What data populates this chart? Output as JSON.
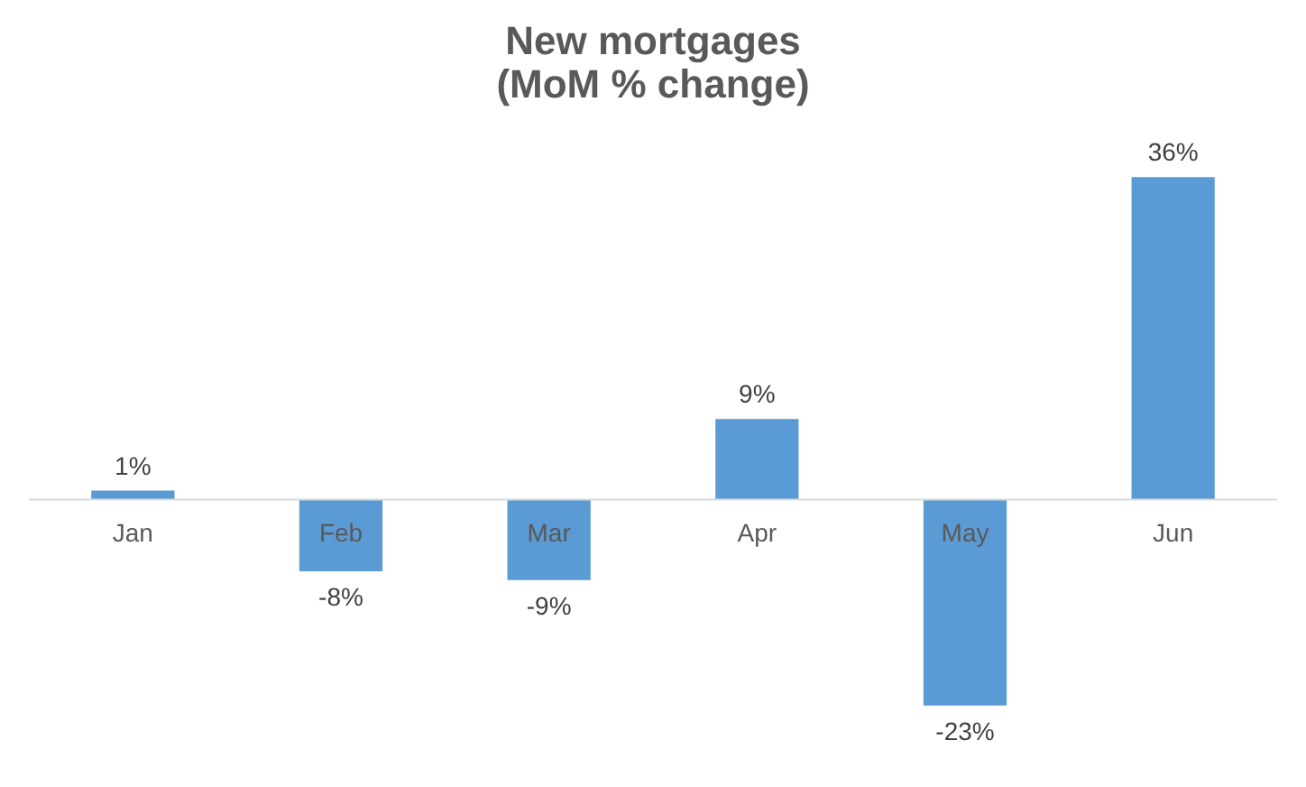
{
  "chart_data": {
    "type": "bar",
    "title": "New mortgages\n(MoM % change)",
    "categories": [
      "Jan",
      "Feb",
      "Mar",
      "Apr",
      "May",
      "Jun"
    ],
    "values": [
      1,
      -8,
      -9,
      9,
      -23,
      36
    ],
    "value_labels": [
      "1%",
      "-8%",
      "-9%",
      "9%",
      "-23%",
      "36%"
    ],
    "color": "#5b9bd5",
    "grid": false
  }
}
